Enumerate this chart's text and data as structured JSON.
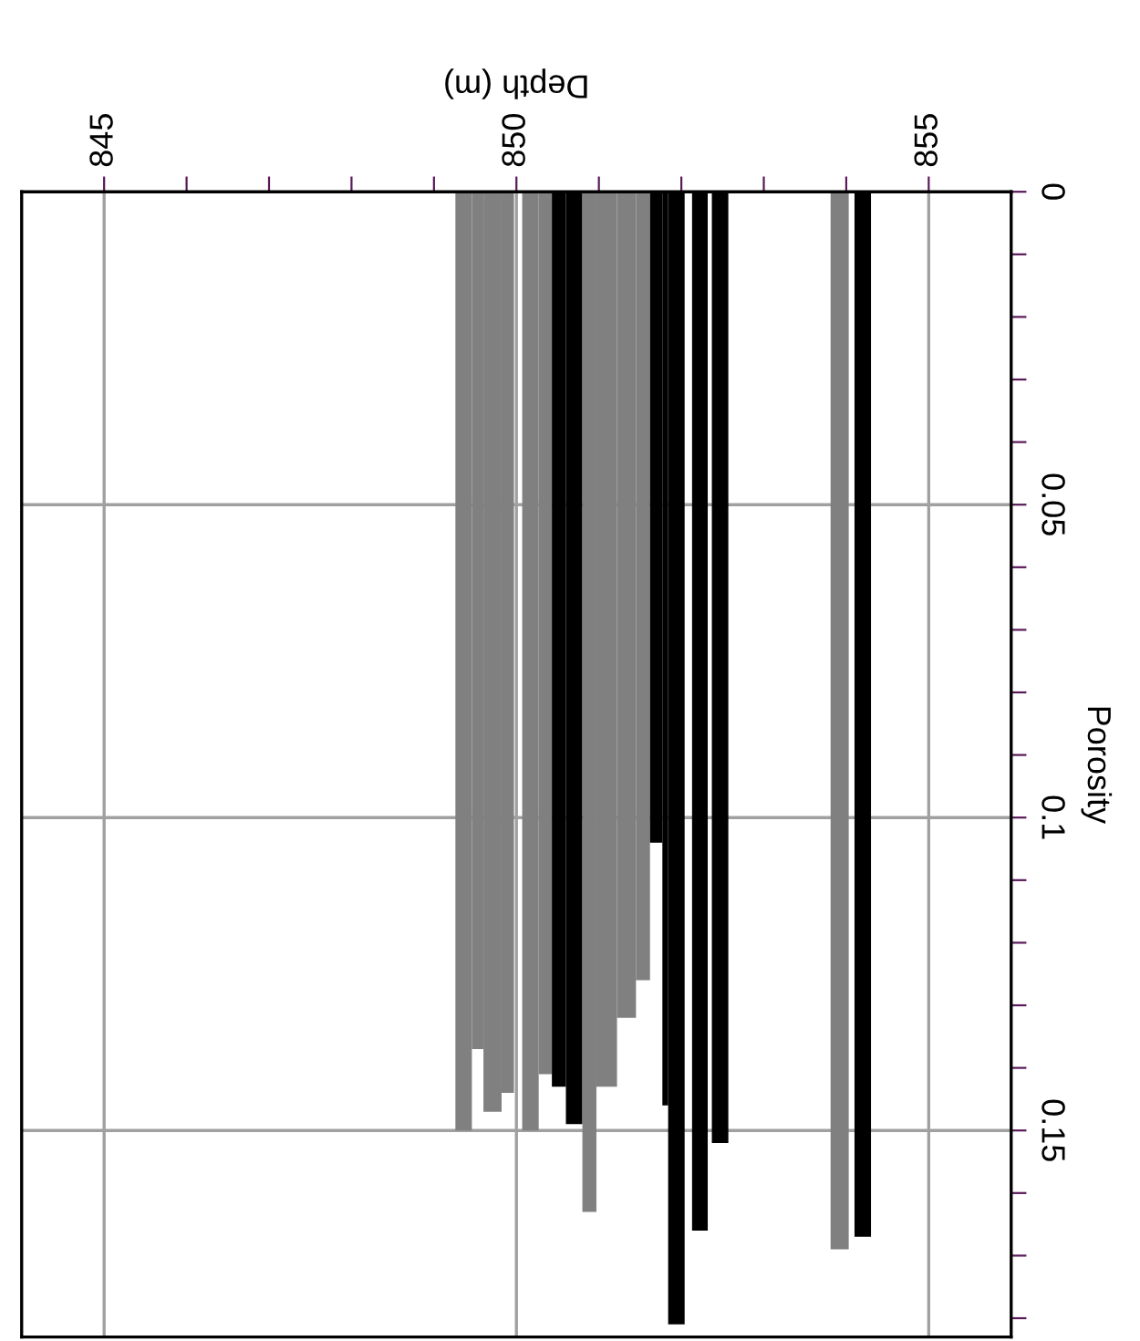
{
  "chart_data": {
    "type": "histogram",
    "xlabel": "Depth (m)",
    "ylabel": "Porosity",
    "bins": [
      849.26,
      849.46,
      849.6,
      849.82,
      849.97,
      850.07,
      850.27,
      850.43,
      850.6,
      850.8,
      850.97,
      851.22,
      851.45,
      851.62,
      851.77,
      851.84,
      852.04,
      852.13,
      852.32,
      852.37,
      852.57,
      853.81,
      854.03,
      854.1,
      854.3
    ],
    "values": [
      0.15,
      0.137,
      0.147,
      0.144,
      null,
      0.15,
      0.141,
      0.143,
      0.149,
      0.163,
      0.143,
      0.132,
      0.126,
      0.104,
      0.146,
      0.181,
      null,
      0.166,
      null,
      0.152,
      null,
      0.169,
      null,
      0.167
    ],
    "colors": [
      "#808080",
      "#808080",
      "#808080",
      "#808080",
      null,
      "#808080",
      "#808080",
      "#000000",
      "#000000",
      "#808080",
      "#808080",
      "#808080",
      "#808080",
      "#000000",
      "#000000",
      "#000000",
      null,
      "#000000",
      null,
      "#000000",
      null,
      "#808080",
      null,
      "#000000"
    ],
    "xlim": [
      844,
      856
    ],
    "xticks": [
      845,
      {
        "value": 846,
        "label": null
      },
      {
        "value": 847,
        "label": null
      },
      {
        "value": 848,
        "label": null
      },
      {
        "value": 849,
        "label": null
      },
      850,
      {
        "value": 851,
        "label": null
      },
      {
        "value": 852,
        "label": null
      },
      {
        "value": 853,
        "label": null
      },
      {
        "value": 854,
        "label": null
      },
      855
    ],
    "ylim": [
      0.183,
      0
    ],
    "yticks": [
      0,
      {
        "value": 0.01,
        "label": null
      },
      {
        "value": 0.02,
        "label": null
      },
      {
        "value": 0.03,
        "label": null
      },
      {
        "value": 0.04,
        "label": null
      },
      0.05,
      {
        "value": 0.06,
        "label": null
      },
      {
        "value": 0.07,
        "label": null
      },
      {
        "value": 0.08,
        "label": null
      },
      {
        "value": 0.09,
        "label": null
      },
      0.1,
      {
        "value": 0.11,
        "label": null
      },
      {
        "value": 0.12,
        "label": null
      },
      {
        "value": 0.13,
        "label": null
      },
      {
        "value": 0.14,
        "label": null
      },
      0.15,
      {
        "value": 0.16,
        "label": null
      },
      {
        "value": 0.17,
        "label": null
      },
      {
        "value": 0.18,
        "label": null
      }
    ],
    "grid": true
  }
}
